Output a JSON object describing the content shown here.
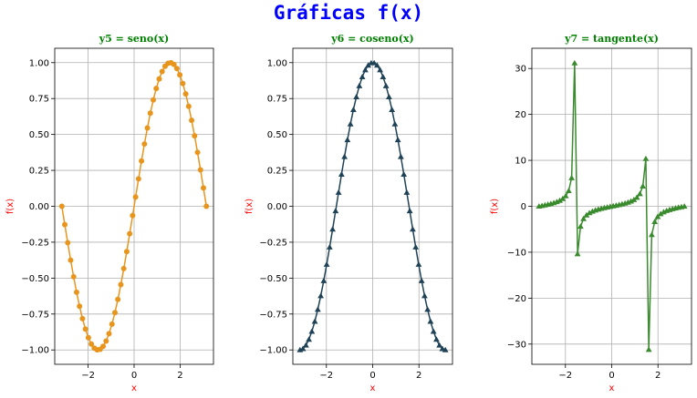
{
  "figure": {
    "suptitle": "Gráficas f(x)",
    "suptitle_color": "#0000ff",
    "subplot_title_color": "#008000",
    "axis_label_color": "#ff0000"
  },
  "chart_data": [
    {
      "type": "line",
      "title": "y5 = seno(x)",
      "xlabel": "x",
      "ylabel": "f(x)",
      "function": "sin",
      "x_range": [
        -3.14159,
        3.14159
      ],
      "n_points": 50,
      "marker": "circle",
      "color": "#e8951e",
      "grid": true,
      "xlim": [
        -3.45,
        3.45
      ],
      "ylim": [
        -1.1,
        1.1
      ],
      "xticks": [
        -2,
        0,
        2
      ],
      "xtick_labels": [
        "−2",
        "0",
        "2"
      ],
      "yticks": [
        -1,
        -0.75,
        -0.5,
        -0.25,
        0,
        0.25,
        0.5,
        0.75,
        1
      ],
      "ytick_labels": [
        "−1.00",
        "−0.75",
        "−0.50",
        "−0.25",
        "0.00",
        "0.25",
        "0.50",
        "0.75",
        "1.00"
      ]
    },
    {
      "type": "line",
      "title": "y6 = coseno(x)",
      "xlabel": "x",
      "ylabel": "f(x)",
      "function": "cos",
      "x_range": [
        -3.14159,
        3.14159
      ],
      "n_points": 50,
      "marker": "triangle",
      "color": "#1f4257",
      "grid": true,
      "xlim": [
        -3.45,
        3.45
      ],
      "ylim": [
        -1.1,
        1.1
      ],
      "xticks": [
        -2,
        0,
        2
      ],
      "xtick_labels": [
        "−2",
        "0",
        "2"
      ],
      "yticks": [
        -1,
        -0.75,
        -0.5,
        -0.25,
        0,
        0.25,
        0.5,
        0.75,
        1
      ],
      "ytick_labels": [
        "−1.00",
        "−0.75",
        "−0.50",
        "−0.25",
        "0.00",
        "0.25",
        "0.50",
        "0.75",
        "1.00"
      ]
    },
    {
      "type": "line",
      "title": "y7 = tangente(x)",
      "xlabel": "x",
      "ylabel": "f(x)",
      "function": "tan",
      "x_range": [
        -3.14159,
        3.14159
      ],
      "n_points": 50,
      "marker": "triangle",
      "color": "#3a8a2e",
      "grid": true,
      "xlim": [
        -3.45,
        3.45
      ],
      "ylim": [
        -34.4,
        34.4
      ],
      "xticks": [
        -2,
        0,
        2
      ],
      "xtick_labels": [
        "−2",
        "0",
        "2"
      ],
      "yticks": [
        -30,
        -20,
        -10,
        0,
        10,
        20,
        30
      ],
      "ytick_labels": [
        "−30",
        "−20",
        "−10",
        "0",
        "10",
        "20",
        "30"
      ]
    }
  ]
}
